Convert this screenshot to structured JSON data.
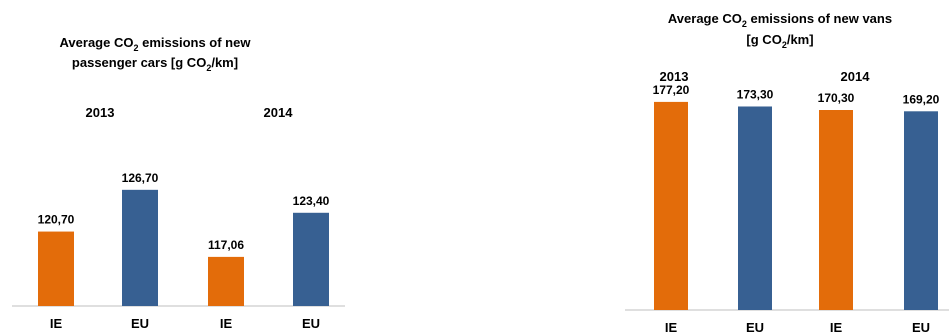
{
  "chart_data": [
    {
      "type": "bar",
      "title_parts": {
        "line1_prefix": "Average CO",
        "line1_sub": "2",
        "line1_suffix": " emissions of new",
        "line2_prefix": "passenger cars [g CO",
        "line2_sub": "2",
        "line2_suffix": "/km]"
      },
      "groups": [
        "2013",
        "2014"
      ],
      "categories": [
        "IE",
        "EU",
        "IE",
        "EU"
      ],
      "values": [
        120.7,
        126.7,
        117.06,
        123.4
      ],
      "value_labels": [
        "120,70",
        "126,70",
        "117,06",
        "123,40"
      ],
      "colors": [
        "#E36C0A",
        "#376092",
        "#E36C0A",
        "#376092"
      ],
      "ylim": [
        110,
        133
      ],
      "grid": false,
      "legend": "none"
    },
    {
      "type": "bar",
      "title_parts": {
        "line1_prefix": "Average CO",
        "line1_sub": "2",
        "line1_suffix": " emissions of new vans",
        "line2_prefix": "[g CO",
        "line2_sub": "2",
        "line2_suffix": "/km]"
      },
      "groups": [
        "2013",
        "2014"
      ],
      "categories": [
        "IE",
        "EU",
        "IE",
        "EU"
      ],
      "values": [
        177.2,
        173.3,
        170.3,
        169.2
      ],
      "value_labels": [
        "177,20",
        "173,30",
        "170,30",
        "169,20"
      ],
      "colors": [
        "#E36C0A",
        "#376092",
        "#E36C0A",
        "#376092"
      ],
      "ylim": [
        0,
        195
      ],
      "grid": false,
      "legend": "none"
    }
  ]
}
